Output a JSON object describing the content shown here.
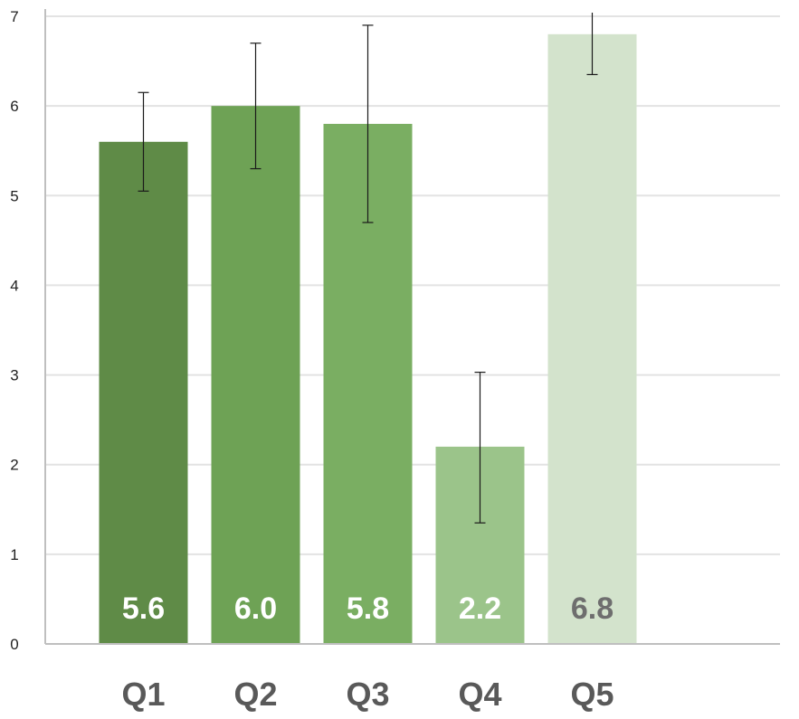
{
  "chart_data": {
    "type": "bar",
    "categories": [
      "Q1",
      "Q2",
      "Q3",
      "Q4",
      "Q5"
    ],
    "values": [
      5.6,
      6.0,
      5.8,
      2.2,
      6.8
    ],
    "error_bars": {
      "lower": [
        5.05,
        5.3,
        4.7,
        1.35,
        6.35
      ],
      "upper": [
        6.15,
        6.7,
        6.9,
        3.03,
        7.25
      ]
    },
    "data_labels": [
      "5.6",
      "6.0",
      "5.8",
      "2.2",
      "6.8"
    ],
    "bar_colors": [
      "#5f8b47",
      "#6ea255",
      "#7aae62",
      "#9bc48a",
      "#d3e3cc"
    ],
    "data_label_colors": [
      "#ffffff",
      "#ffffff",
      "#ffffff",
      "#ffffff",
      "#6e6e6e"
    ],
    "ylim": [
      0,
      7
    ],
    "yticks": [
      "0",
      "1",
      "2",
      "3",
      "4",
      "5",
      "6",
      "7"
    ],
    "grid": true,
    "gridline_color": "#e3e3e3",
    "axis_color": "#bfbfbf",
    "title": "",
    "xlabel": "",
    "ylabel": ""
  }
}
